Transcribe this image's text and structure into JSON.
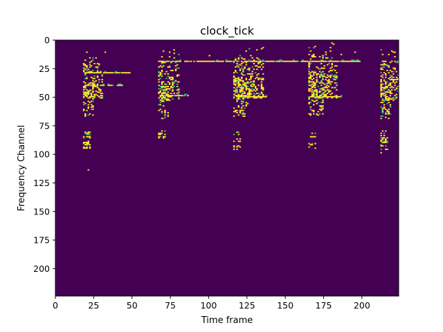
{
  "chart_data": {
    "type": "heatmap",
    "title": "clock_tick",
    "xlabel": "Time frame",
    "ylabel": "Frequency Channel",
    "x_ticks": [
      0,
      25,
      50,
      75,
      100,
      125,
      150,
      175,
      200
    ],
    "y_ticks": [
      0,
      25,
      50,
      75,
      100,
      125,
      150,
      175,
      200
    ],
    "xlim": [
      0,
      224
    ],
    "ylim": [
      224,
      0
    ],
    "colormap": "viridis (binary)",
    "colors": {
      "background": "#440154",
      "active": "#fde725",
      "active_mid": "#35b779"
    },
    "grid": false,
    "legend": "none",
    "events": [
      {
        "t_start": 18,
        "t_end": 30,
        "peak_channels": [
          20,
          50
        ],
        "tail_channels": [
          80,
          95
        ]
      },
      {
        "t_start": 67,
        "t_end": 80,
        "peak_channels": [
          18,
          52
        ],
        "tail_channels": [
          78,
          86
        ]
      },
      {
        "t_start": 116,
        "t_end": 135,
        "peak_channels": [
          15,
          50
        ],
        "tail_channels": [
          80,
          95
        ]
      },
      {
        "t_start": 165,
        "t_end": 183,
        "peak_channels": [
          12,
          50
        ],
        "tail_channels": [
          80,
          95
        ]
      },
      {
        "t_start": 212,
        "t_end": 224,
        "peak_channels": [
          18,
          52
        ],
        "tail_channels": [
          78,
          98
        ]
      }
    ],
    "horizontal_lines": [
      {
        "channel": 18,
        "t_start": 68,
        "t_end": 198
      },
      {
        "channel": 28,
        "t_start": 18,
        "t_end": 48
      },
      {
        "channel": 39,
        "t_start": 20,
        "t_end": 44
      },
      {
        "channel": 48,
        "t_start": 68,
        "t_end": 86
      },
      {
        "channel": 49,
        "t_start": 118,
        "t_end": 137
      },
      {
        "channel": 49,
        "t_start": 165,
        "t_end": 186
      }
    ]
  }
}
